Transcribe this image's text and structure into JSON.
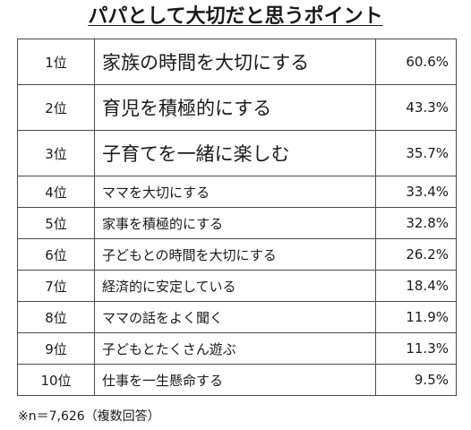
{
  "title": "パパとして大切だと思うポイント",
  "rows": [
    {
      "rank": "1位",
      "item": "家族の時間を大切にする",
      "percent": "60.6%"
    },
    {
      "rank": "2位",
      "item": "育児を積極的にする",
      "percent": "43.3%"
    },
    {
      "rank": "3位",
      "item": "子育てを一緒に楽しむ",
      "percent": "35.7%"
    },
    {
      "rank": "4位",
      "item": "ママを大切にする",
      "percent": "33.4%"
    },
    {
      "rank": "5位",
      "item": "家事を積極的にする",
      "percent": "32.8%"
    },
    {
      "rank": "6位",
      "item": "子どもとの時間を大切にする",
      "percent": "26.2%"
    },
    {
      "rank": "7位",
      "item": "経済的に安定している",
      "percent": "18.4%"
    },
    {
      "rank": "8位",
      "item": "ママの話をよく聞く",
      "percent": "11.9%"
    },
    {
      "rank": "9位",
      "item": "子どもとたくさん遊ぶ",
      "percent": "11.3%"
    },
    {
      "rank": "10位",
      "item": "仕事を一生懸命する",
      "percent": "9.5%"
    }
  ],
  "footnote": "※n＝7,626（複数回答）"
}
